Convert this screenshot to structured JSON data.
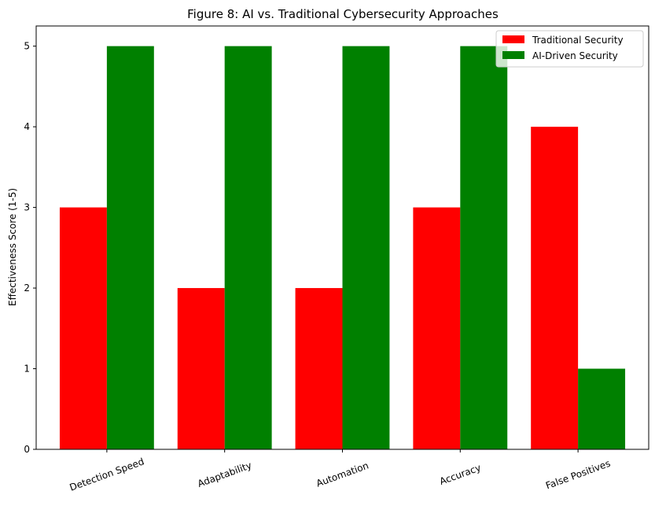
{
  "chart_data": {
    "type": "bar",
    "title": "Figure 8: AI vs. Traditional Cybersecurity Approaches",
    "xlabel": "",
    "ylabel": "Effectiveness Score (1-5)",
    "categories": [
      "Detection Speed",
      "Adaptability",
      "Automation",
      "Accuracy",
      "False Positives"
    ],
    "series": [
      {
        "name": "Traditional Security",
        "color": "#ff0000",
        "values": [
          3,
          2,
          2,
          3,
          4
        ]
      },
      {
        "name": "AI-Driven Security",
        "color": "#008000",
        "values": [
          5,
          5,
          5,
          5,
          1
        ]
      }
    ],
    "ylim": [
      0,
      5.25
    ],
    "yticks": [
      0,
      1,
      2,
      3,
      4,
      5
    ],
    "grid": false,
    "legend_position": "top-right"
  }
}
